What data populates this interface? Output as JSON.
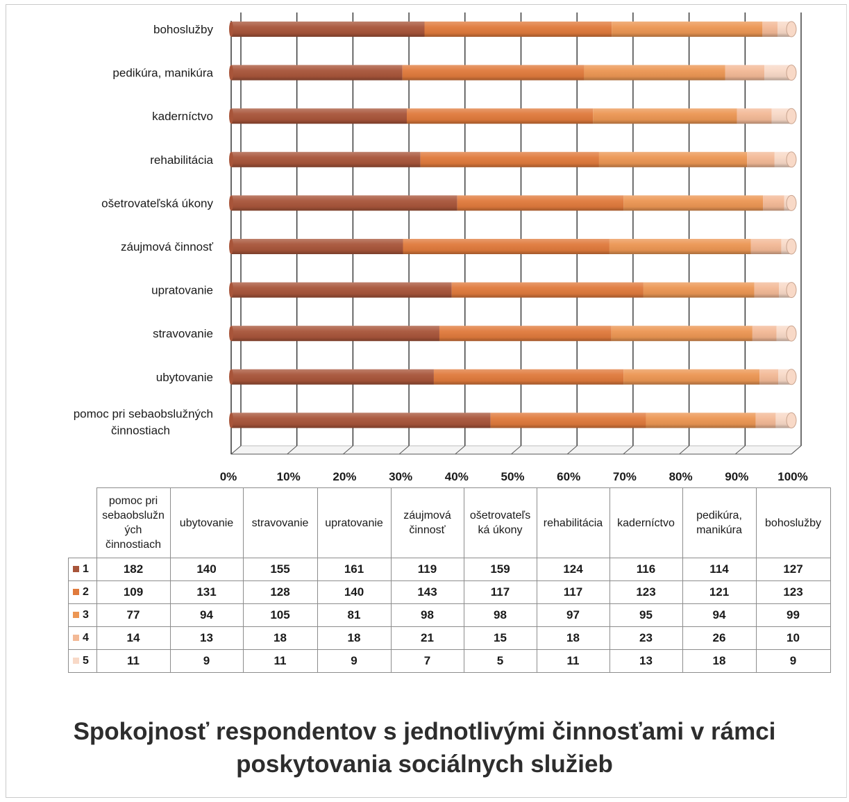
{
  "chart_data": {
    "type": "bar",
    "stacked": "percent",
    "orientation": "horizontal",
    "title": "Spokojnosť respondentov s jednotlivými činnosťami v rámci poskytovania sociálnych služieb",
    "categories": [
      "pomoc pri sebaobslužných činnostiach",
      "ubytovanie",
      "stravovanie",
      "upratovanie",
      "záujmová činnosť",
      "ošetrovateľská úkony",
      "rehabilitácia",
      "kaderníctvo",
      "pedikúra, manikúra",
      "bohoslužby"
    ],
    "table_headers": [
      "pomoc pri sebaobslužn ých činnostiach",
      "ubytovanie",
      "stravovanie",
      "upratovanie",
      "záujmová činnosť",
      "ošetrovateľs ká úkony",
      "rehabilitácia",
      "kaderníctvo",
      "pedikúra, manikúra",
      "bohoslužby"
    ],
    "series": [
      {
        "name": "1",
        "color": "#a8553a",
        "values": [
          182,
          140,
          155,
          161,
          119,
          159,
          124,
          116,
          114,
          127
        ]
      },
      {
        "name": "2",
        "color": "#e07a3c",
        "values": [
          109,
          131,
          128,
          140,
          143,
          117,
          117,
          123,
          121,
          123
        ]
      },
      {
        "name": "3",
        "color": "#ec9653",
        "values": [
          77,
          94,
          105,
          81,
          98,
          98,
          97,
          95,
          94,
          99
        ]
      },
      {
        "name": "4",
        "color": "#f3b996",
        "values": [
          14,
          13,
          18,
          18,
          21,
          15,
          18,
          23,
          26,
          10
        ]
      },
      {
        "name": "5",
        "color": "#f8d9c7",
        "values": [
          11,
          9,
          11,
          9,
          7,
          5,
          11,
          13,
          18,
          9
        ]
      }
    ],
    "x_ticks": [
      "0%",
      "10%",
      "20%",
      "30%",
      "40%",
      "50%",
      "60%",
      "70%",
      "80%",
      "90%",
      "100%"
    ],
    "xlim": [
      0,
      100
    ],
    "grid": true,
    "legend": "data-table"
  }
}
